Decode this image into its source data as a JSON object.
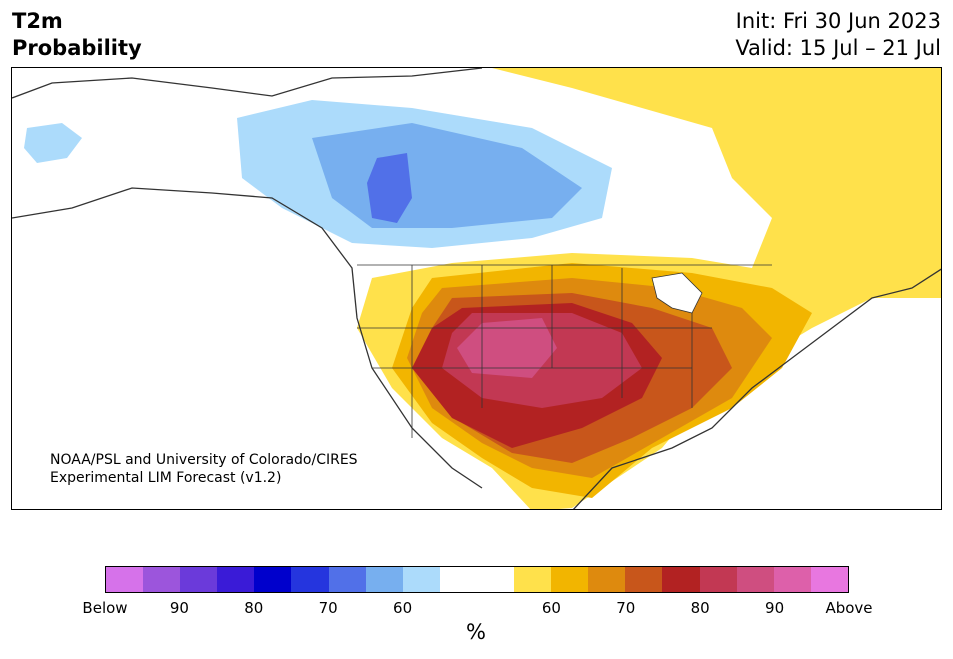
{
  "title": {
    "line1": "T2m",
    "line2": "Probability"
  },
  "info": {
    "init": "Init: Fri 30 Jun 2023",
    "valid": "Valid: 15 Jul – 21 Jul"
  },
  "credit": {
    "line1": "NOAA/PSL and University of Colorado/CIRES",
    "line2": "Experimental LIM Forecast (v1.2)"
  },
  "colorbar": {
    "unit": "%",
    "colors": [
      "#d672ea",
      "#9c55dc",
      "#6b3ada",
      "#3a1bd7",
      "#0000cc",
      "#2535de",
      "#5170e8",
      "#77afef",
      "#acdbfb",
      "#ffffff",
      "#ffffff",
      "#ffe14b",
      "#f2b500",
      "#de8a0e",
      "#c8561b",
      "#b22222",
      "#c23853",
      "#cf4e80",
      "#dd60aa",
      "#e877e0"
    ],
    "ticks": [
      "Below",
      "90",
      "80",
      "70",
      "60",
      "60",
      "70",
      "80",
      "90",
      "Above"
    ]
  },
  "map": {
    "region": "North America",
    "categories": {
      "cold": "below-normal probability (blue shades) over Northern Plains / Canadian Prairies",
      "warm": "above-normal probability (yellow to red shades) over central and southern United States"
    }
  }
}
